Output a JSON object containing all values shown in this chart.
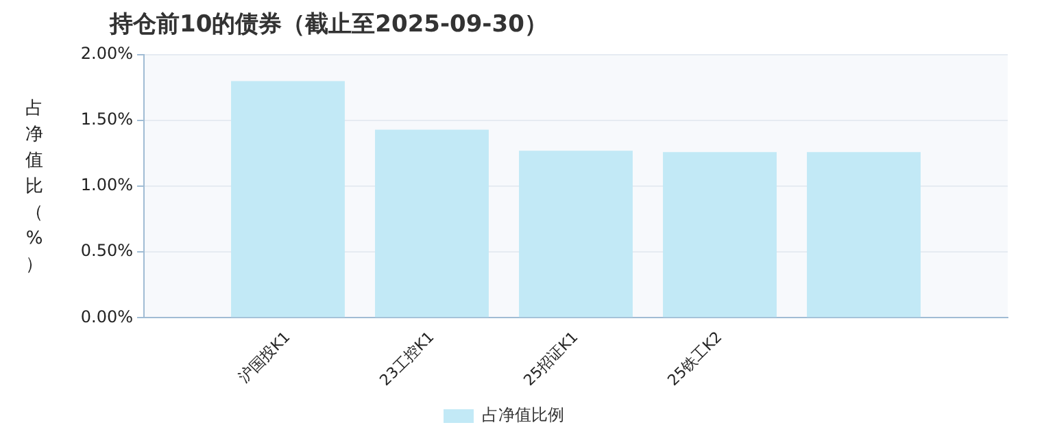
{
  "chart_data": {
    "type": "bar",
    "title": "持仓前10的债券（截止至2025-09-30）",
    "ylabel": "占净值比（%）",
    "categories": [
      "沪国投K1",
      "23工控K1",
      "25招证K1",
      "25铁工K2",
      null
    ],
    "series": [
      {
        "name": "占净值比例",
        "color": "#c2e9f6",
        "values": [
          1.8,
          1.43,
          1.27,
          1.26,
          1.26
        ]
      }
    ],
    "ylim": [
      0,
      2
    ],
    "yticks": [
      {
        "value": 0,
        "label": "0.00%"
      },
      {
        "value": 0.5,
        "label": "0.50%"
      },
      {
        "value": 1,
        "label": "1.00%"
      },
      {
        "value": 1.5,
        "label": "1.50%"
      },
      {
        "value": 2,
        "label": "2.00%"
      }
    ],
    "grid": "y",
    "legend": "bottom"
  }
}
